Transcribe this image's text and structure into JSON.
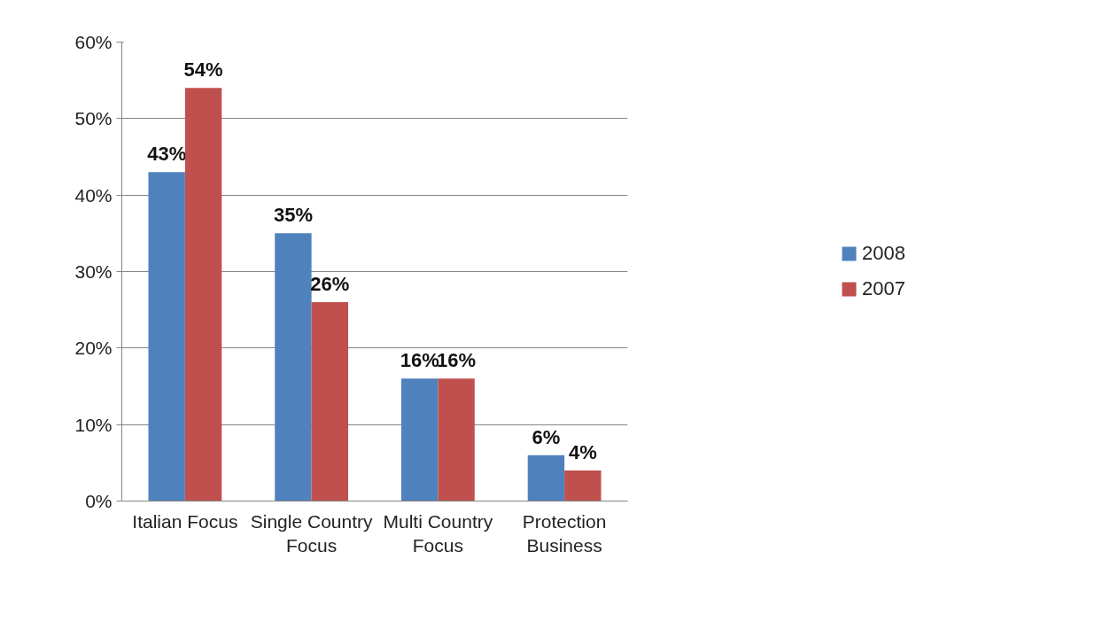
{
  "chart_data": {
    "type": "bar",
    "categories": [
      "Italian Focus",
      "Single Country Focus",
      "Multi Country Focus",
      "Protection Business"
    ],
    "series": [
      {
        "name": "2008",
        "color": "#4f81bd",
        "values": [
          43,
          35,
          16,
          6
        ]
      },
      {
        "name": "2007",
        "color": "#c0504d",
        "values": [
          54,
          26,
          16,
          4
        ]
      }
    ],
    "ylim": [
      0,
      60
    ],
    "yticks": [
      {
        "value": 0,
        "label": "0%"
      },
      {
        "value": 10,
        "label": "10%"
      },
      {
        "value": 20,
        "label": "20%"
      },
      {
        "value": 30,
        "label": "30%"
      },
      {
        "value": 40,
        "label": "40%"
      },
      {
        "value": 50,
        "label": "50%"
      },
      {
        "value": 60,
        "label": "60%"
      }
    ],
    "value_labels": [
      [
        "43%",
        "35%",
        "16%",
        "6%"
      ],
      [
        "54%",
        "26%",
        "16%",
        "4%"
      ]
    ],
    "grid": "y",
    "legend": "right"
  }
}
